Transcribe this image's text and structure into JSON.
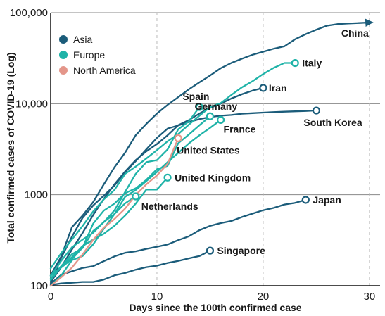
{
  "chart_data": {
    "type": "line",
    "xlabel": "Days since the 100th confirmed case",
    "ylabel": "Total confirmed cases of COVID-19 (Log)",
    "xlim": [
      0,
      31
    ],
    "ylim": [
      100,
      100000
    ],
    "yscale": "log",
    "x_ticks": [
      0,
      10,
      20,
      30
    ],
    "x_tick_labels": [
      "0",
      "10",
      "20",
      "30"
    ],
    "y_ticks": [
      100,
      1000,
      10000,
      100000
    ],
    "y_tick_labels": [
      "100",
      "1000",
      "10,000",
      "100,000"
    ],
    "grid": "horizontal solid at y ticks; vertical dashed at x ticks",
    "legend": {
      "placement": "top-left",
      "entries": [
        {
          "label": "Asia",
          "color": "#1b5c7a"
        },
        {
          "label": "Europe",
          "color": "#1fb3a8"
        },
        {
          "label": "North America",
          "color": "#e4968a"
        }
      ]
    },
    "region_colors": {
      "Asia": "#1b5c7a",
      "Europe": "#1fb3a8",
      "North America": "#e4968a"
    },
    "series": [
      {
        "name": "China",
        "region": "Asia",
        "end_marker": "arrow",
        "x": [
          0,
          1,
          2,
          3,
          4,
          5,
          6,
          7,
          8,
          9,
          10,
          11,
          12,
          13,
          14,
          15,
          16,
          17,
          18,
          19,
          20,
          21,
          22,
          23,
          24,
          25,
          26,
          27,
          28,
          29,
          30
        ],
        "y": [
          130,
          210,
          440,
          590,
          830,
          1300,
          2000,
          2900,
          4500,
          6000,
          7800,
          9700,
          11800,
          14400,
          17200,
          20400,
          24500,
          28000,
          31200,
          34500,
          37200,
          40200,
          42700,
          51000,
          58000,
          65000,
          72000,
          75000,
          76000,
          77000,
          78000
        ]
      },
      {
        "name": "Iran",
        "region": "Asia",
        "end_marker": "circle",
        "x": [
          0,
          1,
          2,
          3,
          4,
          5,
          6,
          7,
          8,
          9,
          10,
          11,
          12,
          13,
          14,
          15,
          16,
          17,
          18,
          19,
          20
        ],
        "y": [
          110,
          160,
          250,
          380,
          600,
          900,
          1300,
          1800,
          2400,
          3000,
          3600,
          4500,
          5800,
          6600,
          7800,
          9000,
          10000,
          11400,
          12700,
          13900,
          14900
        ]
      },
      {
        "name": "South Korea",
        "region": "Asia",
        "end_marker": "circle",
        "x": [
          0,
          1,
          2,
          3,
          4,
          5,
          6,
          7,
          8,
          9,
          10,
          11,
          12,
          13,
          14,
          15,
          16,
          17,
          18,
          19,
          20,
          21,
          22,
          23,
          24,
          25
        ],
        "y": [
          104,
          204,
          346,
          556,
          763,
          977,
          1261,
          1766,
          2337,
          3150,
          4212,
          5328,
          5766,
          6284,
          6767,
          7134,
          7382,
          7513,
          7755,
          7869,
          7979,
          8086,
          8162,
          8236,
          8320,
          8413
        ]
      },
      {
        "name": "Japan",
        "region": "Asia",
        "end_marker": "circle",
        "x": [
          0,
          1,
          2,
          3,
          4,
          5,
          6,
          7,
          8,
          9,
          10,
          11,
          12,
          13,
          14,
          15,
          16,
          17,
          18,
          19,
          20,
          21,
          22,
          23,
          24
        ],
        "y": [
          105,
          132,
          144,
          157,
          164,
          186,
          210,
          230,
          239,
          254,
          268,
          284,
          317,
          349,
          408,
          455,
          488,
          514,
          568,
          620,
          675,
          716,
          780,
          814,
          878
        ]
      },
      {
        "name": "Singapore",
        "region": "Asia",
        "end_marker": "circle",
        "x": [
          0,
          1,
          2,
          3,
          4,
          5,
          6,
          7,
          8,
          9,
          10,
          11,
          12,
          13,
          14,
          15
        ],
        "y": [
          102,
          106,
          108,
          110,
          110,
          117,
          130,
          138,
          150,
          160,
          166,
          178,
          187,
          200,
          212,
          243
        ]
      },
      {
        "name": "Italy",
        "region": "Europe",
        "end_marker": "circle",
        "x": [
          0,
          1,
          2,
          3,
          4,
          5,
          6,
          7,
          8,
          9,
          10,
          11,
          12,
          13,
          14,
          15,
          16,
          17,
          18,
          19,
          20,
          21,
          22,
          23
        ],
        "y": [
          155,
          229,
          322,
          453,
          655,
          888,
          1128,
          1694,
          2036,
          2502,
          3089,
          3858,
          4636,
          5883,
          7375,
          9172,
          10149,
          12462,
          15113,
          17660,
          21157,
          24747,
          27980,
          27980
        ]
      },
      {
        "name": "Spain",
        "region": "Europe",
        "end_marker": "circle",
        "x": [
          0,
          1,
          2,
          3,
          4,
          5,
          6,
          7,
          8,
          9,
          10,
          11,
          12,
          13,
          14
        ],
        "y": [
          120,
          165,
          222,
          259,
          400,
          500,
          673,
          1073,
          1695,
          2277,
          2400,
          3146,
          5232,
          6391,
          9191
        ]
      },
      {
        "name": "Germany",
        "region": "Europe",
        "end_marker": "circle",
        "x": [
          0,
          1,
          2,
          3,
          4,
          5,
          6,
          7,
          8,
          9,
          10,
          11,
          12,
          13,
          14,
          15
        ],
        "y": [
          130,
          159,
          196,
          262,
          482,
          670,
          799,
          1040,
          1176,
          1457,
          1908,
          2078,
          3675,
          4585,
          5795,
          7272
        ]
      },
      {
        "name": "France",
        "region": "Europe",
        "end_marker": "circle",
        "x": [
          0,
          1,
          2,
          3,
          4,
          5,
          6,
          7,
          8,
          9,
          10,
          11,
          12,
          13,
          14,
          15,
          16
        ],
        "y": [
          100,
          130,
          191,
          212,
          285,
          423,
          613,
          949,
          1126,
          1412,
          1784,
          2281,
          2876,
          3661,
          4499,
          5423,
          6633
        ]
      },
      {
        "name": "United Kingdom",
        "region": "Europe",
        "end_marker": "circle",
        "x": [
          0,
          1,
          2,
          3,
          4,
          5,
          6,
          7,
          8,
          9,
          10,
          11
        ],
        "y": [
          115,
          163,
          206,
          273,
          321,
          373,
          456,
          590,
          798,
          1140,
          1140,
          1543
        ]
      },
      {
        "name": "Netherlands",
        "region": "Europe",
        "end_marker": "circle",
        "x": [
          0,
          1,
          2,
          3,
          4,
          5,
          6,
          7,
          8
        ],
        "y": [
          128,
          188,
          265,
          321,
          382,
          503,
          614,
          804,
          959
        ]
      },
      {
        "name": "United States",
        "region": "North America",
        "end_marker": "circle",
        "x": [
          0,
          1,
          2,
          3,
          4,
          5,
          6,
          7,
          8,
          9,
          10,
          11,
          12
        ],
        "y": [
          100,
          124,
          158,
          221,
          319,
          435,
          541,
          704,
          994,
          1301,
          1631,
          2183,
          4174
        ]
      }
    ]
  }
}
